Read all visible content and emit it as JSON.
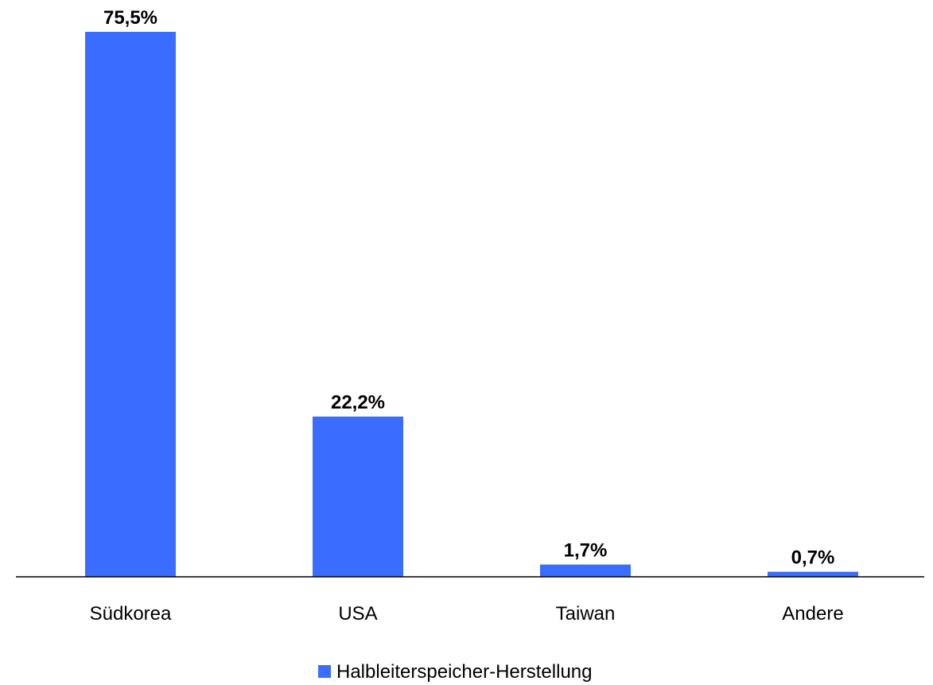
{
  "chart_data": {
    "type": "bar",
    "categories": [
      "Südkorea",
      "USA",
      "Taiwan",
      "Andere"
    ],
    "series": [
      {
        "name": "Halbleiterspeicher-Herstellung",
        "values": [
          75.5,
          22.2,
          1.7,
          0.7
        ],
        "value_labels": [
          "75,5%",
          "22,2%",
          "1,7%",
          "0,7%"
        ],
        "color": "#3A6CFF"
      }
    ],
    "ylim": [
      0,
      75.5
    ],
    "grid": false,
    "legend_position": "bottom-center"
  }
}
